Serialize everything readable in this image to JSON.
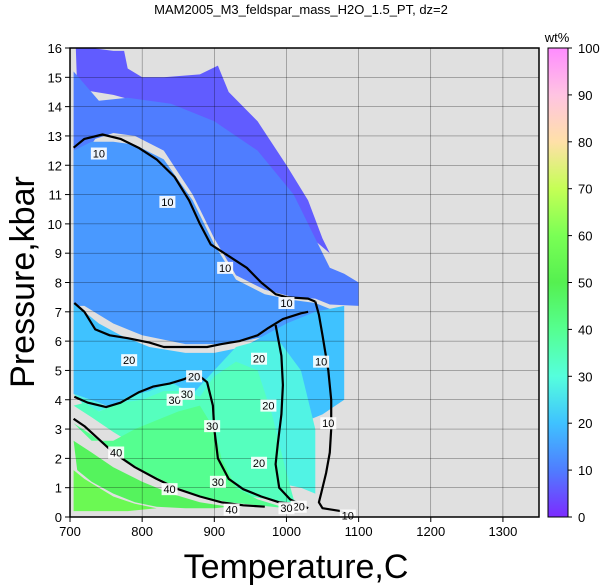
{
  "chart_data": {
    "type": "heatmap",
    "title": "MAM2005_M3_feldspar_mass_H2O_1.5_PT, dz=2",
    "xlabel": "Temperature,C",
    "ylabel": "Pressure,kbar",
    "xlim": [
      700,
      1350
    ],
    "ylim": [
      0,
      16
    ],
    "x_ticks": [
      "700",
      "800",
      "900",
      "1000",
      "1100",
      "1200",
      "1300"
    ],
    "y_ticks": [
      "0",
      "1",
      "2",
      "3",
      "4",
      "5",
      "6",
      "7",
      "8",
      "9",
      "10",
      "11",
      "12",
      "13",
      "14",
      "15",
      "16"
    ],
    "grid": true,
    "background_color": "#e0e0e0",
    "colorbar": {
      "label": "wt%",
      "range": [
        0,
        100
      ],
      "ticks": [
        "0",
        "10",
        "20",
        "30",
        "40",
        "50",
        "60",
        "70",
        "80",
        "90",
        "100"
      ],
      "stops": [
        {
          "v": 0,
          "c": "#7c2bff"
        },
        {
          "v": 10,
          "c": "#4f7dff"
        },
        {
          "v": 20,
          "c": "#3fc2ff"
        },
        {
          "v": 30,
          "c": "#55ffdd"
        },
        {
          "v": 40,
          "c": "#55ff90"
        },
        {
          "v": 50,
          "c": "#55f050"
        },
        {
          "v": 60,
          "c": "#7aff55"
        },
        {
          "v": 70,
          "c": "#c5ff55"
        },
        {
          "v": 80,
          "c": "#ffe0a8"
        },
        {
          "v": 90,
          "c": "#ffc4e2"
        },
        {
          "v": 100,
          "c": "#ff8cff"
        }
      ]
    },
    "regions": [
      {
        "value": 6,
        "polygon": [
          [
            708,
            16
          ],
          [
            730,
            16
          ],
          [
            760,
            15.9
          ],
          [
            775,
            15.9
          ],
          [
            780,
            15.3
          ],
          [
            800,
            15.0
          ],
          [
            830,
            15.0
          ],
          [
            880,
            15.1
          ],
          [
            905,
            15.4
          ],
          [
            920,
            14.5
          ],
          [
            960,
            13.5
          ],
          [
            1000,
            12.0
          ],
          [
            1030,
            10.8
          ],
          [
            1050,
            9.5
          ],
          [
            1060,
            9.0
          ],
          [
            820,
            14.0
          ],
          [
            760,
            14.4
          ],
          [
            710,
            14.6
          ]
        ]
      },
      {
        "value": 10,
        "polygon": [
          [
            705,
            15.2
          ],
          [
            740,
            14.2
          ],
          [
            780,
            14.3
          ],
          [
            840,
            14.1
          ],
          [
            900,
            13.5
          ],
          [
            960,
            12.5
          ],
          [
            1010,
            11.0
          ],
          [
            1040,
            9.5
          ],
          [
            1060,
            8.5
          ],
          [
            1080,
            8.3
          ],
          [
            1100,
            8.0
          ],
          [
            1100,
            7.2
          ],
          [
            1060,
            7.25
          ],
          [
            1040,
            7.45
          ],
          [
            1010,
            7.5
          ],
          [
            970,
            7.75
          ],
          [
            930,
            8.25
          ],
          [
            900,
            9.5
          ],
          [
            870,
            11.0
          ],
          [
            830,
            12.5
          ],
          [
            790,
            13.0
          ],
          [
            760,
            13.1
          ],
          [
            735,
            12.9
          ],
          [
            710,
            12.0
          ],
          [
            705,
            11.0
          ],
          [
            705,
            10.0
          ]
        ]
      },
      {
        "value": 14,
        "polygon": [
          [
            705,
            12.5
          ],
          [
            730,
            12.8
          ],
          [
            760,
            12.8
          ],
          [
            790,
            12.7
          ],
          [
            830,
            12.2
          ],
          [
            870,
            10.8
          ],
          [
            900,
            9.3
          ],
          [
            930,
            8.1
          ],
          [
            970,
            7.6
          ],
          [
            1010,
            7.4
          ],
          [
            1040,
            7.3
          ],
          [
            1060,
            7.1
          ],
          [
            1040,
            6.9
          ],
          [
            980,
            6.2
          ],
          [
            940,
            6.0
          ],
          [
            900,
            5.9
          ],
          [
            860,
            5.9
          ],
          [
            800,
            6.2
          ],
          [
            760,
            6.6
          ],
          [
            720,
            7.2
          ],
          [
            705,
            7.2
          ]
        ]
      },
      {
        "value": 20,
        "polygon": [
          [
            705,
            7.3
          ],
          [
            720,
            7.0
          ],
          [
            740,
            6.6
          ],
          [
            770,
            6.2
          ],
          [
            810,
            5.8
          ],
          [
            860,
            5.6
          ],
          [
            900,
            5.6
          ],
          [
            940,
            5.8
          ],
          [
            970,
            6.2
          ],
          [
            1000,
            6.6
          ],
          [
            1040,
            7.0
          ],
          [
            1080,
            7.2
          ],
          [
            1080,
            4.0
          ],
          [
            1050,
            3.5
          ],
          [
            1000,
            3.0
          ],
          [
            960,
            2.5
          ],
          [
            940,
            2.0
          ],
          [
            900,
            1.6
          ],
          [
            860,
            2.0
          ],
          [
            820,
            2.8
          ],
          [
            780,
            3.5
          ],
          [
            740,
            3.9
          ],
          [
            705,
            4.2
          ]
        ]
      },
      {
        "value": 28,
        "polygon": [
          [
            705,
            4.2
          ],
          [
            740,
            3.9
          ],
          [
            780,
            3.4
          ],
          [
            820,
            2.7
          ],
          [
            860,
            1.9
          ],
          [
            900,
            1.5
          ],
          [
            940,
            1.5
          ],
          [
            980,
            1.2
          ],
          [
            1020,
            1.0
          ],
          [
            1040,
            0.8
          ],
          [
            1040,
            3.0
          ],
          [
            1020,
            5.0
          ],
          [
            990,
            6.0
          ],
          [
            960,
            6.0
          ],
          [
            930,
            5.8
          ],
          [
            900,
            5.0
          ],
          [
            870,
            4.2
          ],
          [
            840,
            4.6
          ],
          [
            810,
            4.3
          ],
          [
            780,
            4.1
          ],
          [
            760,
            3.8
          ],
          [
            740,
            3.6
          ],
          [
            720,
            3.8
          ]
        ]
      },
      {
        "value": 34,
        "polygon": [
          [
            705,
            3.8
          ],
          [
            730,
            3.4
          ],
          [
            760,
            2.9
          ],
          [
            800,
            2.3
          ],
          [
            850,
            1.6
          ],
          [
            900,
            1.0
          ],
          [
            950,
            0.7
          ],
          [
            1000,
            0.5
          ],
          [
            1020,
            0.4
          ],
          [
            1010,
            0.6
          ],
          [
            1000,
            1.5
          ],
          [
            980,
            3.5
          ],
          [
            960,
            5.0
          ],
          [
            930,
            5.3
          ],
          [
            900,
            4.8
          ],
          [
            880,
            4.1
          ],
          [
            860,
            4.3
          ],
          [
            830,
            4.3
          ],
          [
            800,
            4.0
          ],
          [
            770,
            3.9
          ],
          [
            740,
            3.6
          ],
          [
            720,
            3.9
          ]
        ]
      },
      {
        "value": 40,
        "polygon": [
          [
            705,
            3.2
          ],
          [
            730,
            2.8
          ],
          [
            760,
            2.2
          ],
          [
            800,
            1.6
          ],
          [
            840,
            1.1
          ],
          [
            880,
            0.7
          ],
          [
            920,
            0.5
          ],
          [
            960,
            0.4
          ],
          [
            1000,
            0.3
          ],
          [
            960,
            0.6
          ],
          [
            930,
            1.0
          ],
          [
            910,
            2.0
          ],
          [
            900,
            3.0
          ],
          [
            880,
            3.8
          ],
          [
            850,
            3.6
          ],
          [
            820,
            3.3
          ],
          [
            790,
            3.0
          ],
          [
            760,
            2.6
          ],
          [
            730,
            2.6
          ]
        ]
      },
      {
        "value": 48,
        "polygon": [
          [
            705,
            2.6
          ],
          [
            730,
            2.2
          ],
          [
            760,
            1.7
          ],
          [
            800,
            1.2
          ],
          [
            840,
            0.8
          ],
          [
            880,
            0.5
          ],
          [
            920,
            0.35
          ],
          [
            900,
            0.3
          ],
          [
            860,
            0.3
          ],
          [
            820,
            0.35
          ],
          [
            790,
            0.5
          ],
          [
            760,
            0.8
          ],
          [
            730,
            1.2
          ],
          [
            710,
            1.6
          ]
        ]
      },
      {
        "value": 56,
        "polygon": [
          [
            705,
            1.6
          ],
          [
            720,
            1.3
          ],
          [
            740,
            1.0
          ],
          [
            760,
            0.7
          ],
          [
            790,
            0.45
          ],
          [
            820,
            0.3
          ],
          [
            780,
            0.2
          ],
          [
            740,
            0.2
          ],
          [
            705,
            0.2
          ]
        ]
      }
    ],
    "contours": [
      {
        "level": 10,
        "points": [
          [
            705,
            12.6
          ],
          [
            720,
            12.9
          ],
          [
            745,
            13.05
          ],
          [
            770,
            12.9
          ],
          [
            795,
            12.6
          ],
          [
            820,
            12.2
          ],
          [
            845,
            11.6
          ],
          [
            865,
            10.8
          ],
          [
            880,
            10.0
          ],
          [
            895,
            9.3
          ],
          [
            920,
            8.9
          ],
          [
            945,
            8.5
          ],
          [
            965,
            8.0
          ],
          [
            985,
            7.6
          ],
          [
            1000,
            7.5
          ],
          [
            1030,
            7.45
          ],
          [
            1040,
            7.35
          ]
        ]
      },
      {
        "level": 10,
        "points": [
          [
            1040,
            7.35
          ],
          [
            1045,
            6.9
          ],
          [
            1050,
            6.2
          ],
          [
            1058,
            5.0
          ],
          [
            1062,
            4.0
          ],
          [
            1062,
            3.0
          ],
          [
            1060,
            2.2
          ],
          [
            1055,
            1.5
          ],
          [
            1048,
            0.8
          ],
          [
            1045,
            0.5
          ],
          [
            1050,
            0.3
          ],
          [
            1075,
            0.2
          ],
          [
            1090,
            0.05
          ]
        ]
      },
      {
        "level": 20,
        "points": [
          [
            706,
            7.3
          ],
          [
            720,
            7.0
          ],
          [
            735,
            6.4
          ],
          [
            755,
            6.2
          ],
          [
            780,
            6.1
          ],
          [
            810,
            5.95
          ],
          [
            830,
            5.8
          ],
          [
            860,
            5.8
          ],
          [
            890,
            5.8
          ],
          [
            910,
            5.9
          ],
          [
            935,
            6.0
          ],
          [
            960,
            6.2
          ],
          [
            975,
            6.45
          ],
          [
            995,
            6.75
          ],
          [
            1020,
            6.95
          ],
          [
            1030,
            7.0
          ]
        ]
      },
      {
        "level": 20,
        "points": [
          [
            985,
            6.55
          ],
          [
            993,
            5.5
          ],
          [
            995,
            4.5
          ],
          [
            993,
            3.5
          ],
          [
            988,
            2.5
          ],
          [
            985,
            1.8
          ],
          [
            990,
            1.0
          ],
          [
            1005,
            0.6
          ],
          [
            1030,
            0.3
          ]
        ]
      },
      {
        "level": 30,
        "points": [
          [
            706,
            4.1
          ],
          [
            725,
            3.9
          ],
          [
            750,
            3.75
          ],
          [
            770,
            3.9
          ],
          [
            795,
            4.25
          ],
          [
            815,
            4.45
          ],
          [
            838,
            4.55
          ],
          [
            858,
            4.7
          ],
          [
            875,
            4.9
          ],
          [
            890,
            4.6
          ],
          [
            898,
            3.8
          ],
          [
            900,
            3.0
          ],
          [
            905,
            2.0
          ],
          [
            920,
            1.3
          ],
          [
            940,
            0.95
          ],
          [
            965,
            0.7
          ],
          [
            990,
            0.5
          ],
          [
            1010,
            0.45
          ]
        ]
      },
      {
        "level": 40,
        "points": [
          [
            705,
            3.35
          ],
          [
            720,
            3.1
          ],
          [
            740,
            2.65
          ],
          [
            760,
            2.2
          ],
          [
            790,
            1.7
          ],
          [
            820,
            1.3
          ],
          [
            850,
            0.95
          ],
          [
            880,
            0.7
          ],
          [
            910,
            0.5
          ],
          [
            940,
            0.4
          ],
          [
            970,
            0.35
          ]
        ]
      }
    ],
    "contour_labels": [
      {
        "text": "10",
        "x": 740,
        "y": 12.4
      },
      {
        "text": "10",
        "x": 835,
        "y": 10.75
      },
      {
        "text": "10",
        "x": 915,
        "y": 8.5
      },
      {
        "text": "10",
        "x": 1000,
        "y": 7.3
      },
      {
        "text": "10",
        "x": 1048,
        "y": 5.3
      },
      {
        "text": "10",
        "x": 1058,
        "y": 3.2
      },
      {
        "text": "10",
        "x": 1085,
        "y": 0.05
      },
      {
        "text": "20",
        "x": 782,
        "y": 5.35
      },
      {
        "text": "20",
        "x": 872,
        "y": 4.8
      },
      {
        "text": "20",
        "x": 962,
        "y": 5.4
      },
      {
        "text": "20",
        "x": 975,
        "y": 3.8
      },
      {
        "text": "20",
        "x": 962,
        "y": 1.85
      },
      {
        "text": "20",
        "x": 1017,
        "y": 0.35
      },
      {
        "text": "30",
        "x": 845,
        "y": 4.0
      },
      {
        "text": "30",
        "x": 862,
        "y": 4.2
      },
      {
        "text": "30",
        "x": 897,
        "y": 3.1
      },
      {
        "text": "30",
        "x": 905,
        "y": 1.2
      },
      {
        "text": "30",
        "x": 1000,
        "y": 0.3
      },
      {
        "text": "40",
        "x": 764,
        "y": 2.2
      },
      {
        "text": "40",
        "x": 838,
        "y": 0.95
      },
      {
        "text": "40",
        "x": 924,
        "y": 0.25
      }
    ]
  }
}
